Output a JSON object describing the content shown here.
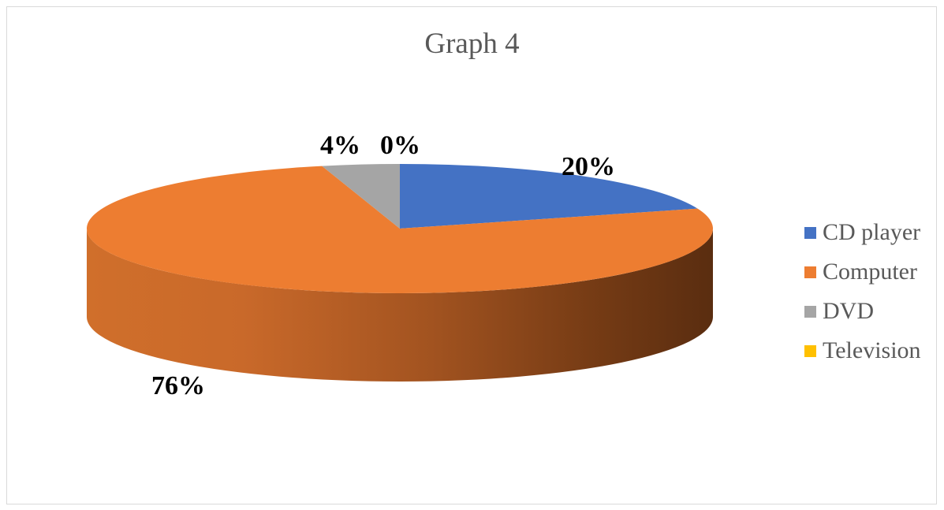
{
  "chart_data": {
    "type": "pie",
    "title": "Graph 4",
    "categories": [
      "CD player",
      "Computer",
      "DVD",
      "Television"
    ],
    "values": [
      20,
      76,
      4,
      0
    ],
    "labels": [
      "20%",
      "76%",
      "4%",
      "0%"
    ],
    "colors": [
      "#4472C4",
      "#ED7D31",
      "#A5A5A5",
      "#FFC000"
    ],
    "legend_position": "right"
  }
}
